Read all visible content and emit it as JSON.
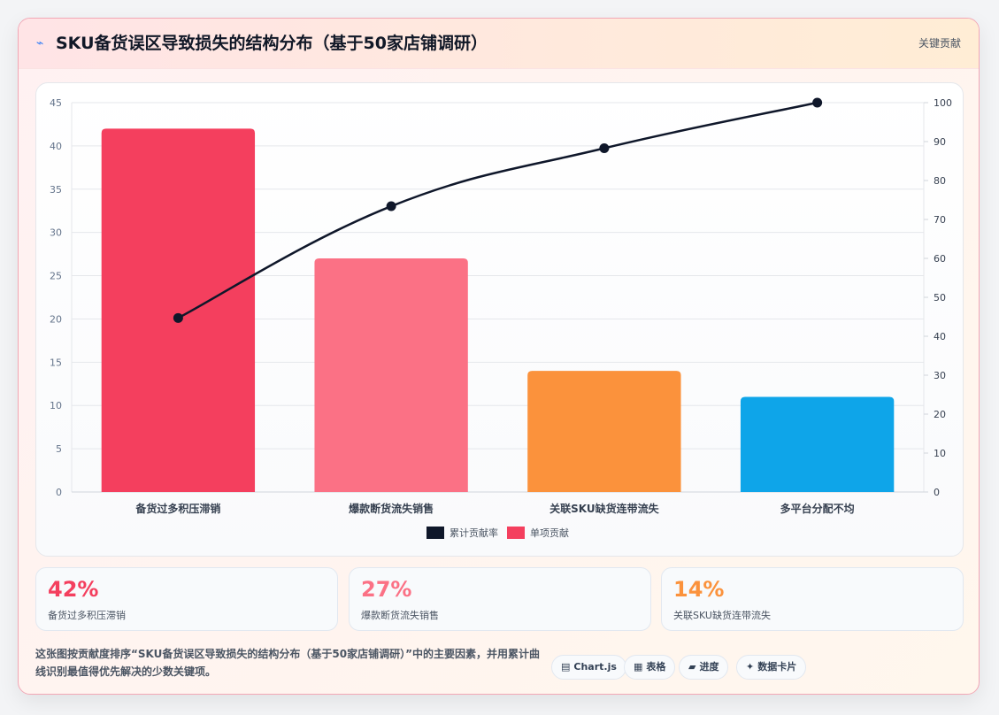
{
  "header": {
    "icon": "lightning-icon",
    "title": "SKU备货误区导致损失的结构分布（基于50家店铺调研）",
    "tag": "关键贡献"
  },
  "chart_data": {
    "type": "bar",
    "categories": [
      "备货过多积压滞销",
      "爆款断货流失销售",
      "关联SKU缺货连带流失",
      "多平台分配不均"
    ],
    "series": [
      {
        "name": "单项贡献",
        "type": "bar",
        "axis": "left",
        "values": [
          42,
          27,
          14,
          11
        ],
        "colors": [
          "#f43f5e",
          "#fb7185",
          "#fb923c",
          "#0ea5e9"
        ]
      },
      {
        "name": "累计贡献率",
        "type": "line",
        "axis": "right",
        "values": [
          44.7,
          73.4,
          88.3,
          100
        ],
        "color": "#0f172a"
      }
    ],
    "y_left": {
      "min": 0,
      "max": 45,
      "ticks": [
        0,
        5,
        10,
        15,
        20,
        25,
        30,
        35,
        40,
        45
      ]
    },
    "y_right": {
      "min": 0,
      "max": 100,
      "ticks": [
        0,
        10,
        20,
        30,
        40,
        50,
        60,
        70,
        80,
        90,
        100
      ]
    },
    "legend": [
      {
        "label": "累计贡献率",
        "color": "#0f172a"
      },
      {
        "label": "单项贡献",
        "color": "#f43f5e"
      }
    ],
    "legend_position": "bottom",
    "grid": true
  },
  "stats": [
    {
      "value": "42%",
      "label": "备货过多积压滞销",
      "color": "#f43f5e"
    },
    {
      "value": "27%",
      "label": "爆款断货流失销售",
      "color": "#fb7185"
    },
    {
      "value": "14%",
      "label": "关联SKU缺货连带流失",
      "color": "#fb923c"
    }
  ],
  "footer": {
    "description": "这张图按贡献度排序“SKU备货误区导致损失的结构分布（基于50家店铺调研）”中的主要因素，并用累计曲线识别最值得优先解决的少数关键项。",
    "pills": [
      {
        "icon": "chart-icon",
        "label": "Chart.js"
      },
      {
        "icon": "table-icon",
        "label": "表格"
      },
      {
        "icon": "progress-icon",
        "label": "进度"
      },
      {
        "icon": "sparkle-icon",
        "label": "数据卡片"
      }
    ]
  }
}
